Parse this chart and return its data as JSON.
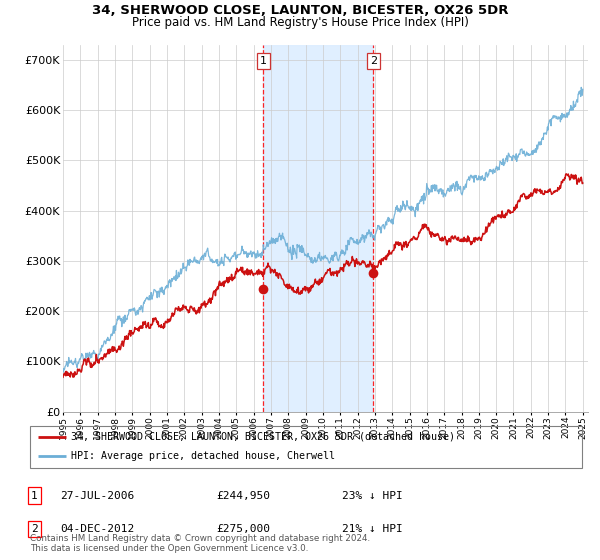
{
  "title_line1": "34, SHERWOOD CLOSE, LAUNTON, BICESTER, OX26 5DR",
  "title_line2": "Price paid vs. HM Land Registry's House Price Index (HPI)",
  "ylabel_ticks": [
    "£0",
    "£100K",
    "£200K",
    "£300K",
    "£400K",
    "£500K",
    "£600K",
    "£700K"
  ],
  "y_values": [
    0,
    100000,
    200000,
    300000,
    400000,
    500000,
    600000,
    700000
  ],
  "ylim": [
    0,
    730000
  ],
  "legend_line1": "34, SHERWOOD CLOSE, LAUNTON, BICESTER, OX26 5DR (detached house)",
  "legend_line2": "HPI: Average price, detached house, Cherwell",
  "sale1_date": "27-JUL-2006",
  "sale1_price": "£244,950",
  "sale1_note": "23% ↓ HPI",
  "sale2_date": "04-DEC-2012",
  "sale2_price": "£275,000",
  "sale2_note": "21% ↓ HPI",
  "footer": "Contains HM Land Registry data © Crown copyright and database right 2024.\nThis data is licensed under the Open Government Licence v3.0.",
  "hpi_color": "#6baed6",
  "price_color": "#cc1111",
  "shaded_color": "#ddeeff",
  "sale1_year": 2006.57,
  "sale2_year": 2012.92,
  "sale1_price_val": 244950,
  "sale2_price_val": 275000,
  "bg_color": "#f8f8f8"
}
